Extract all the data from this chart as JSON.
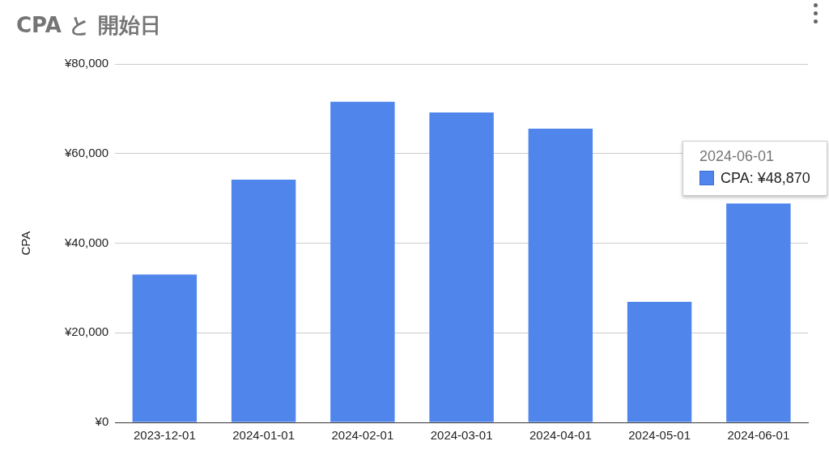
{
  "chart_data": {
    "type": "bar",
    "title": "CPA と 開始日",
    "ylabel": "CPA",
    "categories": [
      "2023-12-01",
      "2024-01-01",
      "2024-02-01",
      "2024-03-01",
      "2024-04-01",
      "2024-05-01",
      "2024-06-01"
    ],
    "values": [
      33000,
      54200,
      71600,
      69200,
      65600,
      26900,
      48870
    ],
    "color": "#5086ec",
    "ylim": [
      0,
      80000
    ],
    "yticks": [
      {
        "value": 0,
        "label": "¥0"
      },
      {
        "value": 20000,
        "label": "¥20,000"
      },
      {
        "value": 40000,
        "label": "¥40,000"
      },
      {
        "value": 60000,
        "label": "¥60,000"
      },
      {
        "value": 80000,
        "label": "¥80,000"
      }
    ],
    "grid": "y",
    "legend": false,
    "annotations": [
      {
        "text": "2024-06-01\nCPA: ¥48,870",
        "x": "2024-06-01",
        "y": 48870
      }
    ]
  }
}
